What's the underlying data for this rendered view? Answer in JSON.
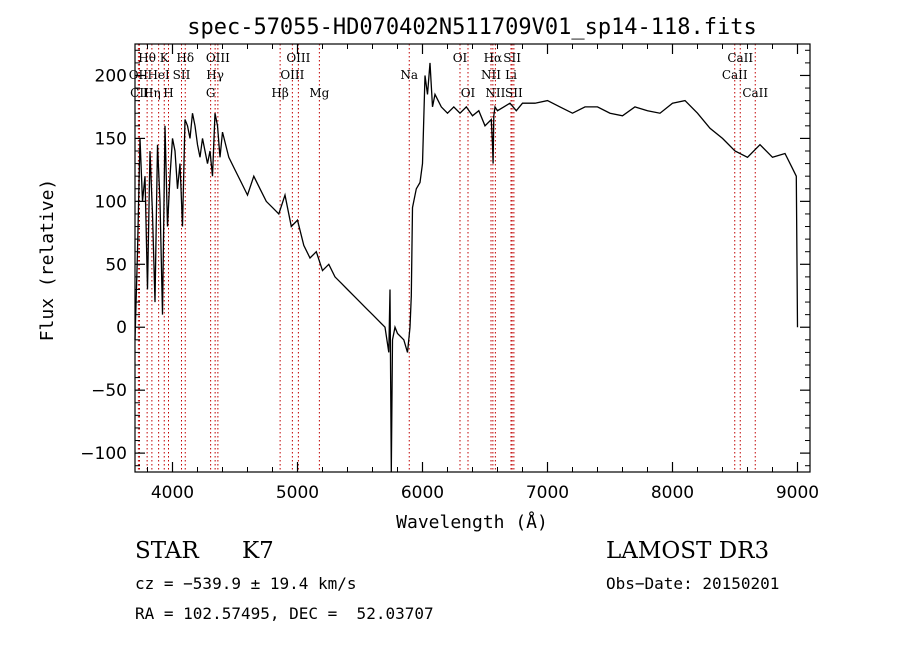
{
  "chart_data": {
    "type": "line",
    "title": "spec-57055-HD070402N511709V01_sp14-118.fits",
    "xlabel": "Wavelength (Å)",
    "ylabel": "Flux (relative)",
    "xlim": [
      3700,
      9100
    ],
    "ylim": [
      -115,
      225
    ],
    "xticks": [
      4000,
      5000,
      6000,
      7000,
      8000,
      9000
    ],
    "yticks": [
      -100,
      -50,
      0,
      50,
      100,
      150,
      200
    ],
    "series": [
      {
        "name": "flux",
        "x": [
          3700,
          3720,
          3740,
          3760,
          3780,
          3800,
          3820,
          3840,
          3860,
          3880,
          3900,
          3920,
          3940,
          3960,
          3980,
          4000,
          4020,
          4040,
          4060,
          4080,
          4100,
          4120,
          4140,
          4160,
          4180,
          4200,
          4220,
          4240,
          4260,
          4280,
          4300,
          4320,
          4340,
          4360,
          4380,
          4400,
          4450,
          4500,
          4550,
          4600,
          4650,
          4700,
          4750,
          4800,
          4850,
          4900,
          4950,
          5000,
          5050,
          5100,
          5150,
          5200,
          5250,
          5300,
          5350,
          5400,
          5450,
          5500,
          5550,
          5600,
          5650,
          5700,
          5730,
          5740,
          5750,
          5760,
          5780,
          5800,
          5850,
          5880,
          5900,
          5910,
          5920,
          5950,
          5980,
          6000,
          6020,
          6040,
          6060,
          6080,
          6100,
          6150,
          6200,
          6250,
          6300,
          6350,
          6400,
          6450,
          6500,
          6550,
          6560,
          6565,
          6570,
          6580,
          6600,
          6650,
          6700,
          6750,
          6800,
          6900,
          7000,
          7100,
          7200,
          7300,
          7400,
          7500,
          7600,
          7700,
          7800,
          7900,
          8000,
          8100,
          8200,
          8300,
          8400,
          8500,
          8600,
          8700,
          8800,
          8900,
          8950,
          8990,
          9000
        ],
        "values": [
          -10,
          60,
          150,
          100,
          120,
          30,
          140,
          90,
          20,
          145,
          100,
          10,
          160,
          80,
          120,
          150,
          140,
          110,
          130,
          80,
          165,
          160,
          150,
          170,
          160,
          145,
          135,
          150,
          140,
          130,
          140,
          120,
          170,
          160,
          135,
          155,
          135,
          125,
          115,
          105,
          120,
          110,
          100,
          95,
          90,
          105,
          80,
          85,
          65,
          55,
          60,
          45,
          50,
          40,
          35,
          30,
          25,
          20,
          15,
          10,
          5,
          0,
          -20,
          30,
          -115,
          -10,
          0,
          -5,
          -10,
          -20,
          0,
          25,
          95,
          110,
          115,
          130,
          200,
          185,
          210,
          175,
          185,
          175,
          170,
          175,
          170,
          175,
          168,
          172,
          160,
          165,
          145,
          130,
          168,
          175,
          172,
          175,
          178,
          172,
          178,
          178,
          180,
          175,
          170,
          175,
          175,
          170,
          168,
          175,
          172,
          170,
          178,
          180,
          170,
          158,
          150,
          140,
          135,
          145,
          135,
          138,
          128,
          120,
          0
        ]
      }
    ],
    "line_labels": [
      {
        "label": "Hθ",
        "x": 3797,
        "row": 0
      },
      {
        "label": "OII",
        "x": 3727,
        "row": 1
      },
      {
        "label": "CII",
        "x": 3736,
        "row": 2
      },
      {
        "label": "Hη",
        "x": 3835,
        "row": 2
      },
      {
        "label": "HeI",
        "x": 3889,
        "row": 1
      },
      {
        "label": "K",
        "x": 3934,
        "row": 0
      },
      {
        "label": "SII",
        "x": 4072,
        "row": 1
      },
      {
        "label": "H",
        "x": 3968,
        "row": 2
      },
      {
        "label": "Hδ",
        "x": 4102,
        "row": 0
      },
      {
        "label": "OIII",
        "x": 4363,
        "row": 0
      },
      {
        "label": "Hγ",
        "x": 4341,
        "row": 1
      },
      {
        "label": "G",
        "x": 4305,
        "row": 2
      },
      {
        "label": "Hβ",
        "x": 4861,
        "row": 2
      },
      {
        "label": "OIII",
        "x": 5007,
        "row": 0
      },
      {
        "label": "OIII",
        "x": 4959,
        "row": 1
      },
      {
        "label": "Mg",
        "x": 5175,
        "row": 2
      },
      {
        "label": "Na",
        "x": 5894,
        "row": 1
      },
      {
        "label": "OI",
        "x": 6300,
        "row": 0
      },
      {
        "label": "OI",
        "x": 6364,
        "row": 2
      },
      {
        "label": "Hα",
        "x": 6563,
        "row": 0
      },
      {
        "label": "SII",
        "x": 6717,
        "row": 0
      },
      {
        "label": "NII",
        "x": 6548,
        "row": 1
      },
      {
        "label": "Li",
        "x": 6708,
        "row": 1
      },
      {
        "label": "NII",
        "x": 6583,
        "row": 2
      },
      {
        "label": "SII",
        "x": 6731,
        "row": 2
      },
      {
        "label": "CaII",
        "x": 8542,
        "row": 0
      },
      {
        "label": "CaII",
        "x": 8498,
        "row": 1
      },
      {
        "label": "CaII",
        "x": 8662,
        "row": 2
      }
    ]
  },
  "info": {
    "class_label": "STAR",
    "subclass": "K7",
    "survey": "LAMOST DR3",
    "cz": "cz = −539.9 ± 19.4 km/s",
    "obs_date": "Obs−Date: 20150201",
    "coords": "RA = 102.57495, DEC =  52.03707"
  }
}
